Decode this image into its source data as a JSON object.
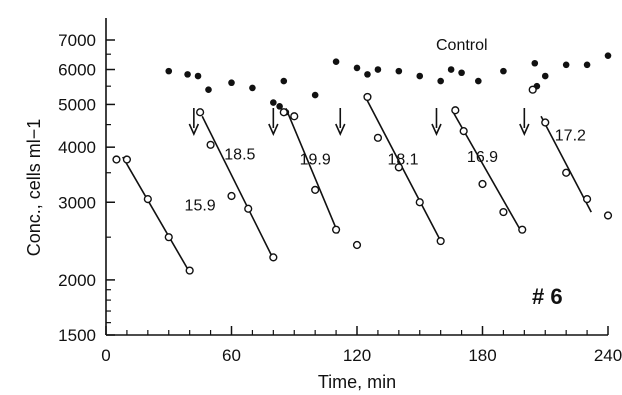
{
  "chart_data": {
    "type": "scatter",
    "xlabel": "Time, min",
    "ylabel": "Conc., cells ml−1",
    "xlim": [
      0,
      240
    ],
    "ylim": [
      1500,
      7000
    ],
    "yscale": "log",
    "xticks": [
      0,
      60,
      120,
      180,
      240
    ],
    "yticks": [
      1500,
      2000,
      3000,
      4000,
      5000,
      6000,
      7000
    ],
    "xtick_labels": [
      "0",
      "60",
      "120",
      "180",
      "240"
    ],
    "ytick_labels": [
      "1500",
      "2000",
      "3000",
      "4000",
      "5000",
      "6000",
      "7000"
    ],
    "grid": false,
    "legend": "none",
    "panel_label": "# 6",
    "control_label": "Control",
    "control_points": [
      {
        "x": 30,
        "y": 5950
      },
      {
        "x": 39,
        "y": 5850
      },
      {
        "x": 44,
        "y": 5800
      },
      {
        "x": 49,
        "y": 5400
      },
      {
        "x": 60,
        "y": 5600
      },
      {
        "x": 70,
        "y": 5450
      },
      {
        "x": 80,
        "y": 5050
      },
      {
        "x": 83,
        "y": 4950
      },
      {
        "x": 85,
        "y": 5650
      },
      {
        "x": 86,
        "y": 4800
      },
      {
        "x": 100,
        "y": 5250
      },
      {
        "x": 110,
        "y": 6250
      },
      {
        "x": 120,
        "y": 6050
      },
      {
        "x": 125,
        "y": 5850
      },
      {
        "x": 130,
        "y": 6000
      },
      {
        "x": 140,
        "y": 5950
      },
      {
        "x": 150,
        "y": 5800
      },
      {
        "x": 160,
        "y": 5650
      },
      {
        "x": 165,
        "y": 6000
      },
      {
        "x": 170,
        "y": 5900
      },
      {
        "x": 178,
        "y": 5650
      },
      {
        "x": 190,
        "y": 5950
      },
      {
        "x": 205,
        "y": 6200
      },
      {
        "x": 210,
        "y": 5800
      },
      {
        "x": 206,
        "y": 5500
      },
      {
        "x": 220,
        "y": 6150
      },
      {
        "x": 230,
        "y": 6150
      },
      {
        "x": 240,
        "y": 6450
      }
    ],
    "arrows_x": [
      42,
      80,
      112,
      158,
      200
    ],
    "series": [
      {
        "rate_label": "15.9",
        "points": [
          [
            5,
            3750
          ],
          [
            10,
            3750
          ],
          [
            20,
            3050
          ],
          [
            30,
            2500
          ],
          [
            40,
            2100
          ]
        ],
        "line": [
          [
            8,
            3800
          ],
          [
            40,
            2080
          ]
        ],
        "label_at": [
          45,
          2950
        ]
      },
      {
        "rate_label": "18.5",
        "points": [
          [
            45,
            4800
          ],
          [
            50,
            4050
          ],
          [
            60,
            3100
          ],
          [
            68,
            2900
          ],
          [
            80,
            2250
          ]
        ],
        "line": [
          [
            46,
            4700
          ],
          [
            80,
            2230
          ]
        ],
        "label_at": [
          64,
          3850
        ]
      },
      {
        "rate_label": "19.9",
        "points": [
          [
            85,
            4800
          ],
          [
            90,
            4700
          ],
          [
            100,
            3200
          ],
          [
            110,
            2600
          ],
          [
            120,
            2400
          ]
        ],
        "line": [
          [
            86,
            4900
          ],
          [
            111,
            2550
          ]
        ],
        "label_at": [
          100,
          3750
        ]
      },
      {
        "rate_label": "18.1",
        "points": [
          [
            125,
            5200
          ],
          [
            130,
            4200
          ],
          [
            140,
            3600
          ],
          [
            150,
            3000
          ],
          [
            160,
            2450
          ]
        ],
        "line": [
          [
            124,
            5200
          ],
          [
            160,
            2450
          ]
        ],
        "label_at": [
          142,
          3750
        ]
      },
      {
        "rate_label": "16.9",
        "points": [
          [
            167,
            4850
          ],
          [
            171,
            4350
          ],
          [
            180,
            3300
          ],
          [
            190,
            2850
          ],
          [
            199,
            2600
          ]
        ],
        "line": [
          [
            166,
            4800
          ],
          [
            198,
            2600
          ]
        ],
        "label_at": [
          180,
          3800
        ]
      },
      {
        "rate_label": "17.2",
        "points": [
          [
            204,
            5400
          ],
          [
            210,
            4550
          ],
          [
            220,
            3500
          ],
          [
            230,
            3050
          ],
          [
            240,
            2800
          ]
        ],
        "line": [
          [
            208,
            4700
          ],
          [
            232,
            2850
          ]
        ],
        "label_at": [
          222,
          4250
        ]
      }
    ]
  }
}
